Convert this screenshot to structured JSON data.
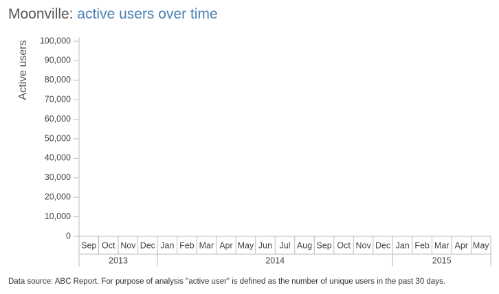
{
  "chart_data": {
    "type": "line",
    "title": "Moonville:",
    "subtitle": "active users over time",
    "y_label": "Active users",
    "ylim": [
      0,
      100000
    ],
    "yticks": [
      0,
      {
        "value": 10000,
        "label": "10,000"
      },
      {
        "value": 20000,
        "label": "20,000"
      },
      {
        "value": 30000,
        "label": "30,000"
      },
      {
        "value": 40000,
        "label": "40,000"
      },
      {
        "value": 50000,
        "label": "50,000"
      },
      {
        "value": 60000,
        "label": "60,000"
      },
      {
        "value": 70000,
        "label": "70,000"
      },
      {
        "value": 80000,
        "label": "80,000"
      },
      {
        "value": 90000,
        "label": "90,000"
      },
      {
        "value": 100000,
        "label": "100,000"
      }
    ],
    "x_groups": [
      {
        "label": "2013",
        "categories": [
          "Sep",
          "Oct",
          "Nov",
          "Dec"
        ]
      },
      {
        "label": "2014",
        "categories": [
          "Jan",
          "Feb",
          "Mar",
          "Apr",
          "May",
          "Jun",
          "Jul",
          "Aug",
          "Sep",
          "Oct",
          "Nov",
          "Dec"
        ]
      },
      {
        "label": "2015",
        "categories": [
          "Jan",
          "Feb",
          "Mar",
          "Apr",
          "May"
        ]
      }
    ],
    "series": [],
    "footnote": "Data source: ABC Report. For purpose of analysis \"active user\" is defined as the number of unique users in the past 30 days."
  }
}
